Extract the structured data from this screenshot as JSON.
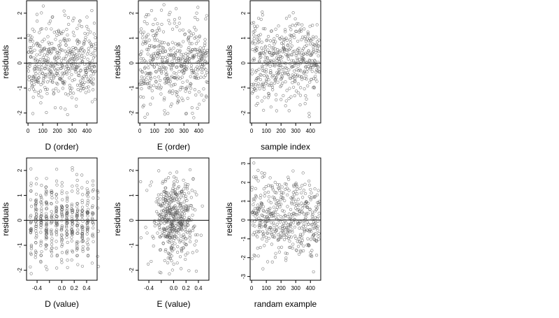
{
  "figure": {
    "panels": [
      {
        "id": "d-order",
        "xlabel": "D (order)",
        "ylabel": "residuals"
      },
      {
        "id": "e-order",
        "xlabel": "E (order)",
        "ylabel": "residuals"
      },
      {
        "id": "sample-index",
        "xlabel": "sample index",
        "ylabel": "residuals"
      },
      {
        "id": "d-value",
        "xlabel": "D (value)",
        "ylabel": "residuals"
      },
      {
        "id": "e-value",
        "xlabel": "E (value)",
        "ylabel": "residuals"
      },
      {
        "id": "random-example",
        "xlabel": "randam example",
        "ylabel": "residuals"
      }
    ]
  },
  "chart_data": [
    {
      "type": "scatter",
      "title": "",
      "xlabel": "D (order)",
      "ylabel": "residuals",
      "xlim": [
        -10,
        470
      ],
      "ylim": [
        -2.4,
        2.5
      ],
      "xticks": [
        0,
        100,
        200,
        300,
        400
      ],
      "yticks": [
        -2,
        -1,
        0,
        1,
        2
      ],
      "xtick_labels": [
        "0",
        "100",
        "200",
        "300",
        "400"
      ],
      "ytick_labels": [
        "-2",
        "-1",
        "0",
        "1",
        "2"
      ],
      "reference_line": {
        "y": 0
      },
      "grid": false,
      "series": [
        {
          "n": 460,
          "x_range": [
            1,
            460
          ],
          "y_range": [
            -2.2,
            2.4
          ],
          "seed": 11,
          "kind": "order"
        }
      ]
    },
    {
      "type": "scatter",
      "title": "",
      "xlabel": "E (order)",
      "ylabel": "residuals",
      "xlim": [
        -10,
        470
      ],
      "ylim": [
        -2.4,
        2.5
      ],
      "xticks": [
        0,
        100,
        200,
        300,
        400
      ],
      "yticks": [
        -2,
        -1,
        0,
        1,
        2
      ],
      "xtick_labels": [
        "0",
        "100",
        "200",
        "300",
        "400"
      ],
      "ytick_labels": [
        "-2",
        "-1",
        "0",
        "1",
        "2"
      ],
      "reference_line": {
        "y": 0
      },
      "grid": false,
      "series": [
        {
          "n": 460,
          "x_range": [
            1,
            460
          ],
          "y_range": [
            -2.2,
            2.4
          ],
          "seed": 23,
          "kind": "order"
        }
      ]
    },
    {
      "type": "scatter",
      "title": "",
      "xlabel": "sample index",
      "ylabel": "residuals",
      "xlim": [
        -10,
        470
      ],
      "ylim": [
        -2.4,
        2.5
      ],
      "xticks": [
        0,
        100,
        200,
        300,
        400
      ],
      "yticks": [
        -2,
        -1,
        0,
        1,
        2
      ],
      "xtick_labels": [
        "0",
        "100",
        "200",
        "300",
        "400"
      ],
      "ytick_labels": [
        "-2",
        "-1",
        "0",
        "1",
        "2"
      ],
      "reference_line": {
        "y": 0
      },
      "grid": false,
      "series": [
        {
          "n": 460,
          "x_range": [
            1,
            460
          ],
          "y_range": [
            -2.2,
            2.4
          ],
          "seed": 37,
          "kind": "order"
        }
      ]
    },
    {
      "type": "scatter",
      "title": "",
      "xlabel": "D (value)",
      "ylabel": "residuals",
      "xlim": [
        -0.57,
        0.57
      ],
      "ylim": [
        -2.4,
        2.5
      ],
      "xticks": [
        -0.4,
        -0.2,
        0.0,
        0.2,
        0.4
      ],
      "yticks": [
        -2,
        -1,
        0,
        1,
        2
      ],
      "xtick_labels": [
        "-0.4",
        "",
        "0.0",
        "0.2",
        "0.4"
      ],
      "ytick_labels": [
        "-2",
        "-1",
        "0",
        "1",
        "2"
      ],
      "reference_line": {
        "y": 0
      },
      "grid": false,
      "series": [
        {
          "n": 460,
          "x_range": [
            -0.55,
            0.55
          ],
          "y_range": [
            -2.2,
            2.4
          ],
          "seed": 53,
          "kind": "value"
        }
      ]
    },
    {
      "type": "scatter",
      "title": "",
      "xlabel": "E (value)",
      "ylabel": "residuals",
      "xlim": [
        -0.57,
        0.57
      ],
      "ylim": [
        -2.4,
        2.5
      ],
      "xticks": [
        -0.4,
        -0.2,
        0.0,
        0.2,
        0.4
      ],
      "yticks": [
        -2,
        -1,
        0,
        1,
        2
      ],
      "xtick_labels": [
        "-0.4",
        "",
        "0.0",
        "0.2",
        "0.4"
      ],
      "ytick_labels": [
        "-2",
        "-1",
        "0",
        "1",
        "2"
      ],
      "reference_line": {
        "y": 0
      },
      "grid": false,
      "series": [
        {
          "n": 460,
          "x_range": [
            -0.55,
            0.55
          ],
          "y_range": [
            -2.2,
            2.4
          ],
          "seed": 71,
          "kind": "value-centered"
        }
      ]
    },
    {
      "type": "scatter",
      "title": "",
      "xlabel": "randam example",
      "ylabel": "residuals",
      "xlim": [
        -10,
        470
      ],
      "ylim": [
        -3.2,
        3.3
      ],
      "xticks": [
        0,
        100,
        200,
        300,
        400
      ],
      "yticks": [
        -3,
        -2,
        -1,
        0,
        1,
        2,
        3
      ],
      "xtick_labels": [
        "0",
        "100",
        "200",
        "300",
        "400"
      ],
      "ytick_labels": [
        "-3",
        "-2",
        "-1",
        "0",
        "1",
        "2",
        "3"
      ],
      "reference_line": {
        "y": 0
      },
      "grid": false,
      "series": [
        {
          "n": 460,
          "x_range": [
            1,
            460
          ],
          "y_range": [
            -3.0,
            3.1
          ],
          "seed": 97,
          "kind": "order"
        }
      ]
    }
  ]
}
